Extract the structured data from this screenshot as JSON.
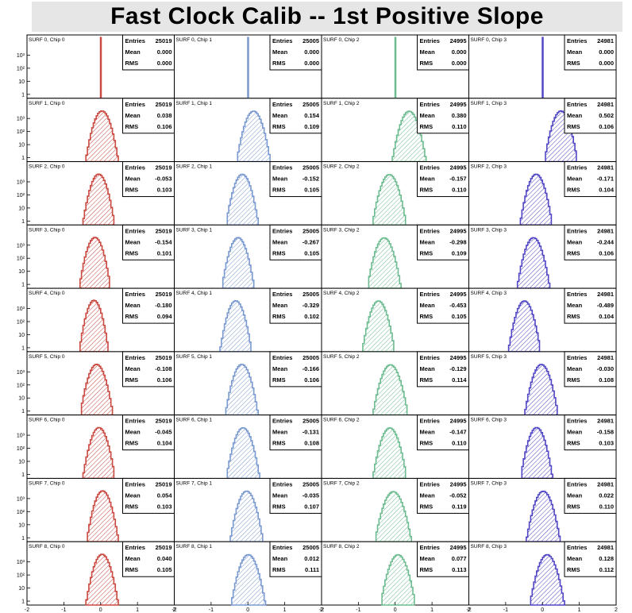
{
  "title": "Fast Clock Calib -- 1st Positive Slope",
  "chart_data": {
    "type": "histogram-grid",
    "title": "Fast Clock Calib -- 1st Positive Slope",
    "x_range": [
      -2,
      2
    ],
    "x_tick_labels": [
      "-2",
      "-1",
      "0",
      "1",
      "2"
    ],
    "y_scale": "log",
    "y_tick_labels": [
      "1",
      "10",
      "10²",
      "10³"
    ],
    "y_range": [
      0.5,
      20000
    ],
    "stats_labels": {
      "entries": "Entries",
      "mean": "Mean",
      "rms": "RMS"
    },
    "chip_colors": [
      "#c9483f",
      "#7a99cf",
      "#6dbb90",
      "#5146c4"
    ],
    "columns": [
      {
        "chip": 0,
        "entries": "25019"
      },
      {
        "chip": 1,
        "entries": "25005"
      },
      {
        "chip": 2,
        "entries": "24995"
      },
      {
        "chip": 3,
        "entries": "24981"
      }
    ],
    "rows": [
      {
        "label": "SURF 0",
        "means": [
          "0.000",
          "0.000",
          "0.000",
          "0.000"
        ],
        "rms": [
          "0.000",
          "0.000",
          "0.000",
          "0.000"
        ]
      },
      {
        "label": "SURF 1",
        "means": [
          "0.038",
          "0.154",
          "0.380",
          "0.502"
        ],
        "rms": [
          "0.106",
          "0.109",
          "0.110",
          "0.106"
        ]
      },
      {
        "label": "SURF 2",
        "means": [
          "-0.053",
          "-0.152",
          "-0.157",
          "-0.171"
        ],
        "rms": [
          "0.103",
          "0.105",
          "0.110",
          "0.104"
        ]
      },
      {
        "label": "SURF 3",
        "means": [
          "-0.154",
          "-0.267",
          "-0.298",
          "-0.244"
        ],
        "rms": [
          "0.101",
          "0.105",
          "0.109",
          "0.106"
        ]
      },
      {
        "label": "SURF 4",
        "means": [
          "-0.180",
          "-0.329",
          "-0.453",
          "-0.489"
        ],
        "rms": [
          "0.094",
          "0.102",
          "0.105",
          "0.104"
        ]
      },
      {
        "label": "SURF 5",
        "means": [
          "-0.108",
          "-0.166",
          "-0.129",
          "-0.030"
        ],
        "rms": [
          "0.106",
          "0.106",
          "0.114",
          "0.108"
        ]
      },
      {
        "label": "SURF 6",
        "means": [
          "-0.045",
          "-0.131",
          "-0.147",
          "-0.158"
        ],
        "rms": [
          "0.104",
          "0.108",
          "0.110",
          "0.103"
        ]
      },
      {
        "label": "SURF 7",
        "means": [
          "0.054",
          "-0.035",
          "-0.052",
          "0.022"
        ],
        "rms": [
          "0.103",
          "0.107",
          "0.119",
          "0.110"
        ]
      },
      {
        "label": "SURF 8",
        "means": [
          "0.040",
          "0.012",
          "0.077",
          "0.128"
        ],
        "rms": [
          "0.105",
          "0.111",
          "0.113",
          "0.112"
        ]
      }
    ],
    "panel_title_template": "{surf}, Chip {chip}"
  }
}
